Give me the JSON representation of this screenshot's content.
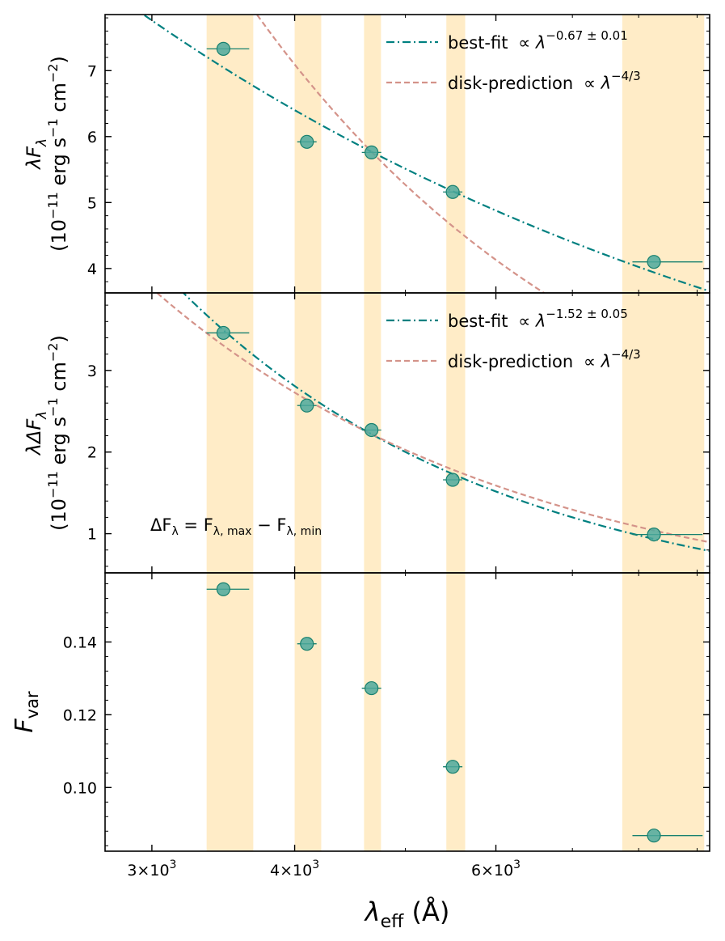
{
  "colors": {
    "band": "#ffecc7",
    "point": "#4ea99c",
    "point_edge": "#17806f",
    "fit": "#008080",
    "disk": "#d4938a",
    "axis": "#000000"
  },
  "x_axis": {
    "label_symbol": "λ",
    "label_sub": "eff",
    "label_unit": "(Å)",
    "scale": "log",
    "xlim": [
      2730,
      9230
    ],
    "ticks": [
      {
        "value": 3000,
        "mant": "3×10",
        "exp": "3"
      },
      {
        "value": 4000,
        "mant": "4×10",
        "exp": "3"
      },
      {
        "value": 6000,
        "mant": "6×10",
        "exp": "3"
      }
    ]
  },
  "chart_data": [
    {
      "type": "scatter",
      "panel": "top",
      "ylabel": "λF_λ (10^-11 erg s^-1 cm^-2)",
      "ylabel_line1": {
        "symbol": "λF",
        "sub": "λ"
      },
      "ylabel_line2": {
        "pre": "(10",
        "exp1": "−11",
        "mid": " erg s",
        "exp2": "−1",
        "mid2": " cm",
        "exp3": "−2",
        "post": ")"
      },
      "ylim": [
        3.63,
        7.85
      ],
      "yticks": [
        4,
        5,
        6,
        7
      ],
      "series": [
        {
          "name": "data",
          "x": [
            3465,
            4100,
            4670,
            5500,
            8250
          ],
          "y": [
            7.33,
            5.92,
            5.76,
            5.16,
            4.1
          ],
          "xerr": [
            [
              3350,
              3650
            ],
            null,
            null,
            null,
            [
              7900,
              9100
            ]
          ]
        },
        {
          "name": "best-fit",
          "kind": "powerlaw",
          "exponent": -0.67,
          "anchor": [
            4670,
            5.77
          ]
        },
        {
          "name": "disk-prediction",
          "kind": "powerlaw",
          "exponent": -1.3333,
          "anchor": [
            4670,
            5.77
          ]
        }
      ],
      "legend": [
        {
          "style": "dashdot",
          "label": "best-fit",
          "expr": "∝ λ",
          "exp": "−0.67 ± 0.01"
        },
        {
          "style": "dashed",
          "label": "disk-prediction",
          "expr": "∝ λ",
          "exp": "−4/3"
        }
      ]
    },
    {
      "type": "scatter",
      "panel": "middle",
      "ylabel": "λΔF_λ (10^-11 erg s^-1 cm^-2)",
      "ylabel_line1": {
        "symbol": "λΔF",
        "sub": "λ"
      },
      "ylabel_line2": {
        "pre": "(10",
        "exp1": "−11",
        "mid": " erg s",
        "exp2": "−1",
        "mid2": " cm",
        "exp3": "−2",
        "post": ")"
      },
      "ylim": [
        0.52,
        3.95
      ],
      "yticks": [
        1,
        2,
        3
      ],
      "series": [
        {
          "name": "data",
          "x": [
            3465,
            4100,
            4670,
            5500,
            8250
          ],
          "y": [
            3.46,
            2.57,
            2.27,
            1.66,
            0.99
          ],
          "xerr": [
            [
              3350,
              3650
            ],
            null,
            null,
            null,
            [
              7900,
              9100
            ]
          ]
        },
        {
          "name": "best-fit",
          "kind": "powerlaw",
          "exponent": -1.52,
          "anchor": [
            4670,
            2.22
          ]
        },
        {
          "name": "disk-prediction",
          "kind": "powerlaw",
          "exponent": -1.3333,
          "anchor": [
            4670,
            2.22
          ]
        }
      ],
      "legend": [
        {
          "style": "dashdot",
          "label": "best-fit",
          "expr": "∝ λ",
          "exp": "−1.52 ± 0.05"
        },
        {
          "style": "dashed",
          "label": "disk-prediction",
          "expr": "∝ λ",
          "exp": "−4/3"
        }
      ],
      "annotation": {
        "text": "ΔF",
        "sub1": "λ",
        "mid": " = F",
        "sub2": "λ, max",
        "mid2": " − F",
        "sub3": "λ, min"
      }
    },
    {
      "type": "scatter",
      "panel": "bottom",
      "ylabel": "F_var",
      "ylabel_line1": {
        "symbol": "F",
        "sub": "var"
      },
      "ylim": [
        0.0825,
        0.159
      ],
      "yticks": [
        0.1,
        0.12,
        0.14
      ],
      "ytick_labels": [
        "0.10",
        "0.12",
        "0.14"
      ],
      "series": [
        {
          "name": "data",
          "x": [
            3465,
            4100,
            4670,
            5500,
            8250
          ],
          "y": [
            0.1545,
            0.1395,
            0.1273,
            0.1057,
            0.0868
          ],
          "xerr": [
            [
              3350,
              3650
            ],
            null,
            null,
            null,
            [
              7900,
              9100
            ]
          ]
        }
      ]
    }
  ],
  "bands": [
    [
      3350,
      3680
    ],
    [
      4000,
      4220
    ],
    [
      4600,
      4760
    ],
    [
      5430,
      5640
    ],
    [
      7740,
      9130
    ]
  ]
}
